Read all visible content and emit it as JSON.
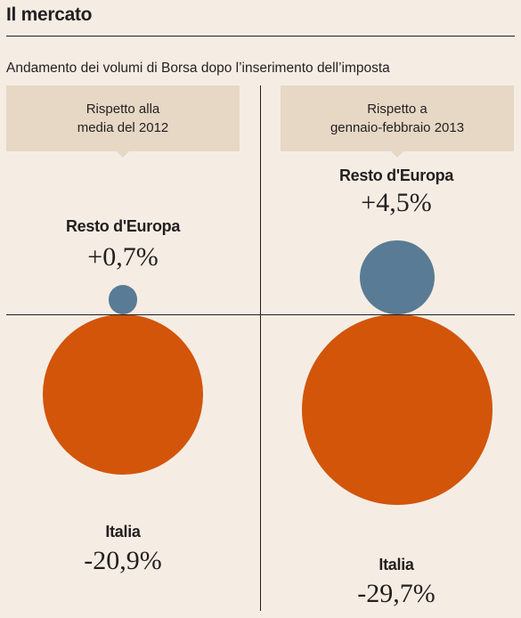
{
  "header": {
    "title": "Il mercato",
    "subtitle": "Andamento dei volumi di Borsa dopo l’inserimento dell’imposta"
  },
  "colors": {
    "europe": "#5a7b95",
    "italy": "#d2550a",
    "header_bg": "#e6d8c5",
    "background": "#f5ede4"
  },
  "chart_data": [
    {
      "type": "bubble",
      "panel_label_line1": "Rispetto alla",
      "panel_label_line2": "media del 2012",
      "points": [
        {
          "name": "Resto d'Europa",
          "value": 0.7,
          "value_label": "+0,7%"
        },
        {
          "name": "Italia",
          "value": -20.9,
          "value_label": "-20,9%"
        }
      ]
    },
    {
      "type": "bubble",
      "panel_label_line1": "Rispetto a",
      "panel_label_line2": "gennaio-febbraio 2013",
      "points": [
        {
          "name": "Resto d'Europa",
          "value": 4.5,
          "value_label": "+4,5%"
        },
        {
          "name": "Italia",
          "value": -29.7,
          "value_label": "-29,7%"
        }
      ]
    }
  ]
}
